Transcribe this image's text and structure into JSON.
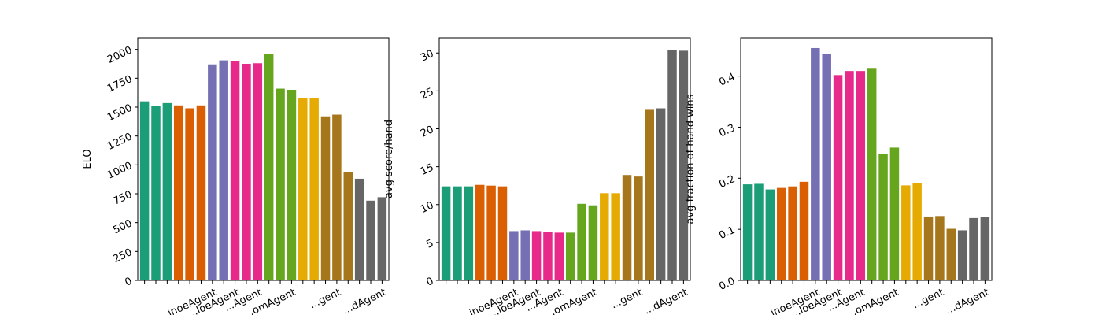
{
  "chart_data": [
    {
      "type": "bar",
      "ylabel": "ELO",
      "ylim": [
        0,
        2100
      ],
      "yticks": [
        0,
        250,
        500,
        750,
        1000,
        1250,
        1500,
        1750,
        2000
      ],
      "ytick_labels": [
        "0",
        "250",
        "500",
        "750",
        "1000",
        "1250",
        "1500",
        "1750",
        "2000"
      ],
      "values": [
        1550,
        1510,
        1535,
        1515,
        1490,
        1515,
        1870,
        1905,
        1900,
        1875,
        1880,
        1960,
        1660,
        1650,
        1575,
        1575,
        1420,
        1435,
        940,
        880,
        690,
        720
      ],
      "visible_category_labels": [
        "...inoeAgent",
        "...loeAgent",
        "...Agent",
        "...omAgent",
        "...gent",
        "...dAgent"
      ]
    },
    {
      "type": "bar",
      "ylabel": "avg score/hand",
      "ylim": [
        0,
        32
      ],
      "yticks": [
        0,
        5,
        10,
        15,
        20,
        25,
        30
      ],
      "ytick_labels": [
        "0",
        "5",
        "10",
        "15",
        "20",
        "25",
        "30"
      ],
      "values": [
        12.4,
        12.4,
        12.4,
        12.6,
        12.5,
        12.4,
        6.5,
        6.6,
        6.5,
        6.4,
        6.3,
        6.3,
        10.1,
        9.9,
        11.5,
        11.5,
        13.9,
        13.7,
        22.5,
        22.7,
        30.4,
        30.3
      ],
      "visible_category_labels": [
        "...inoeAgent",
        "...loeAgent",
        "...Agent",
        "...omAgent",
        "...gent",
        "...dAgent"
      ]
    },
    {
      "type": "bar",
      "ylabel": "avg fraction of hand wins",
      "ylim": [
        0,
        0.475
      ],
      "yticks": [
        0.0,
        0.1,
        0.2,
        0.3,
        0.4
      ],
      "ytick_labels": [
        "0.0",
        "0.1",
        "0.2",
        "0.3",
        "0.4"
      ],
      "values": [
        0.188,
        0.189,
        0.178,
        0.181,
        0.184,
        0.193,
        0.455,
        0.444,
        0.402,
        0.41,
        0.41,
        0.416,
        0.247,
        0.26,
        0.186,
        0.19,
        0.125,
        0.126,
        0.101,
        0.098,
        0.122,
        0.124
      ],
      "visible_category_labels": [
        "...inoeAgent",
        "...loeAgent",
        "...Agent",
        "...omAgent",
        "...gent",
        "...dAgent"
      ]
    }
  ],
  "bar_colors": [
    "#1b9e77",
    "#1b9e77",
    "#1b9e77",
    "#d95f02",
    "#d95f02",
    "#d95f02",
    "#7570b3",
    "#7570b3",
    "#e7298a",
    "#e7298a",
    "#e7298a",
    "#66a61e",
    "#66a61e",
    "#66a61e",
    "#e6ab02",
    "#e6ab02",
    "#a6761d",
    "#a6761d",
    "#a6761d",
    "#666666",
    "#666666",
    "#666666"
  ]
}
